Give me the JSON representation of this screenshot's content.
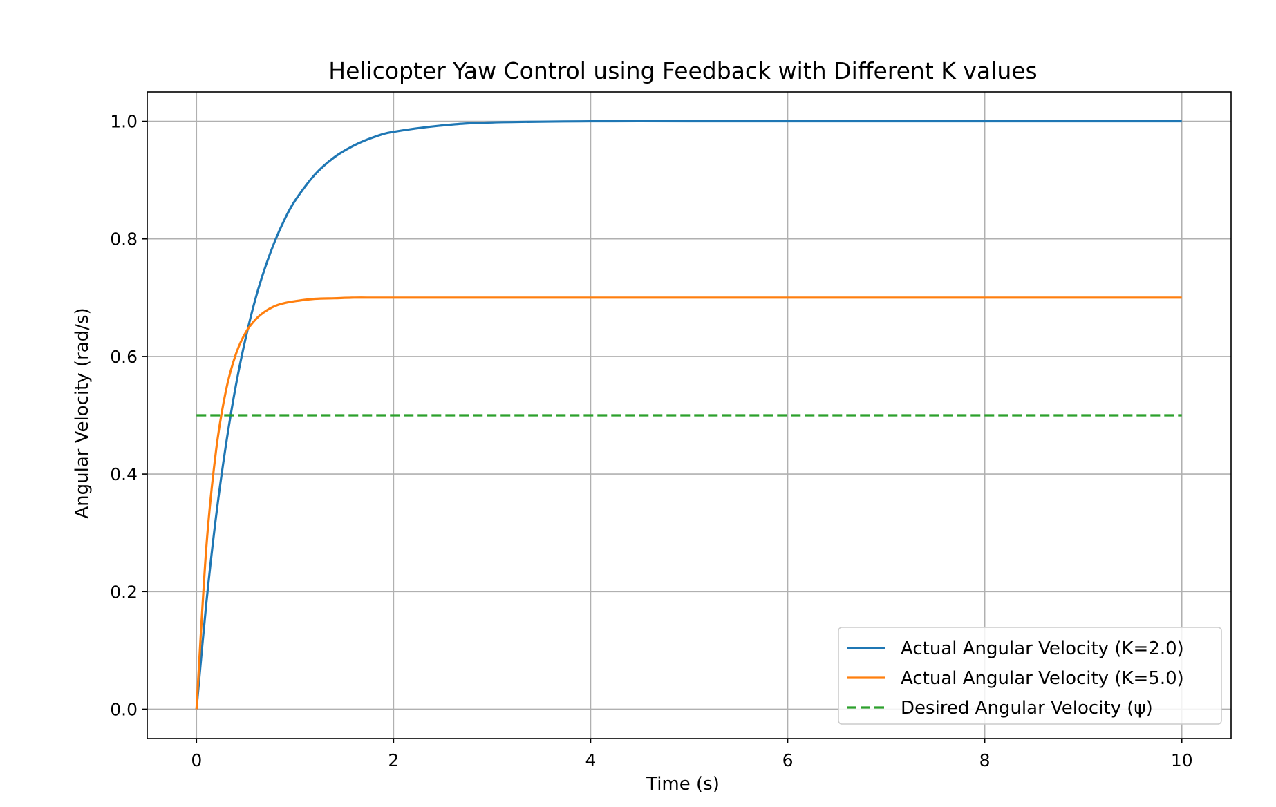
{
  "chart_data": {
    "type": "line",
    "title": "Helicopter Yaw Control using Feedback with Different K values",
    "xlabel": "Time (s)",
    "ylabel": "Angular Velocity (rad/s)",
    "xlim": [
      -0.5,
      10.5
    ],
    "ylim": [
      -0.05,
      1.05
    ],
    "xticks": [
      0,
      2,
      4,
      6,
      8,
      10
    ],
    "xtick_labels": [
      "0",
      "2",
      "4",
      "6",
      "8",
      "10"
    ],
    "yticks": [
      0.0,
      0.2,
      0.4,
      0.6,
      0.8,
      1.0
    ],
    "ytick_labels": [
      "0.0",
      "0.2",
      "0.4",
      "0.6",
      "0.8",
      "1.0"
    ],
    "grid": true,
    "legend_position": "lower-right",
    "x": [
      0,
      0.1,
      0.2,
      0.3,
      0.4,
      0.5,
      0.6,
      0.7,
      0.8,
      0.9,
      1.0,
      1.2,
      1.4,
      1.6,
      1.8,
      2.0,
      2.5,
      3.0,
      4.0,
      5.0,
      6.0,
      7.0,
      8.0,
      9.0,
      10.0
    ],
    "series": [
      {
        "name": "Actual Angular Velocity (K=2.0)",
        "color": "#1f77b4",
        "style": "solid",
        "values": [
          0,
          0.181,
          0.33,
          0.451,
          0.551,
          0.632,
          0.699,
          0.753,
          0.798,
          0.835,
          0.865,
          0.909,
          0.939,
          0.959,
          0.973,
          0.982,
          0.993,
          0.998,
          1.0,
          1.0,
          1.0,
          1.0,
          1.0,
          1.0,
          1.0
        ]
      },
      {
        "name": "Actual Angular Velocity (K=5.0)",
        "color": "#ff7f0e",
        "style": "solid",
        "values": [
          0,
          0.276,
          0.442,
          0.543,
          0.604,
          0.641,
          0.663,
          0.677,
          0.686,
          0.691,
          0.694,
          0.698,
          0.699,
          0.7,
          0.7,
          0.7,
          0.7,
          0.7,
          0.7,
          0.7,
          0.7,
          0.7,
          0.7,
          0.7,
          0.7
        ]
      },
      {
        "name": "Desired Angular Velocity (ψ)",
        "color": "#2ca02c",
        "style": "dashed",
        "values": [
          0.5,
          0.5,
          0.5,
          0.5,
          0.5,
          0.5,
          0.5,
          0.5,
          0.5,
          0.5,
          0.5,
          0.5,
          0.5,
          0.5,
          0.5,
          0.5,
          0.5,
          0.5,
          0.5,
          0.5,
          0.5,
          0.5,
          0.5,
          0.5,
          0.5
        ]
      }
    ]
  }
}
